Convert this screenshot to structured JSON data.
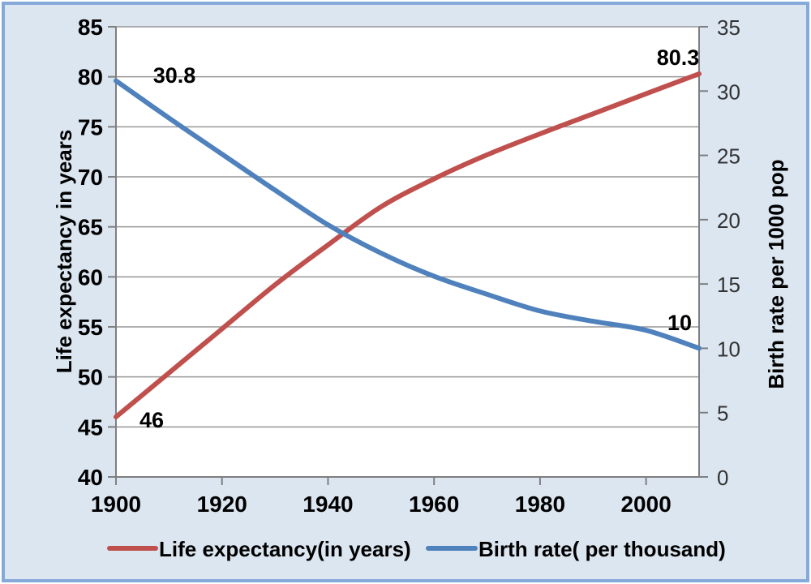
{
  "frame": {
    "background_color": "#DCE6F1",
    "border_color": "#85AAD9",
    "plot_background": "#FFFFFF"
  },
  "colors": {
    "gridline": "#969696",
    "axis_line": "#7F7F7F",
    "tick_text": "#000000",
    "right_tick_text": "#333333"
  },
  "chart_data": {
    "type": "line",
    "title": "",
    "grid": true,
    "legend_position": "bottom",
    "x": [
      1900,
      1910,
      1920,
      1930,
      1940,
      1950,
      1960,
      1970,
      1980,
      1990,
      2000,
      2010
    ],
    "series": [
      {
        "id": "life-expectancy-line",
        "name": "Life expectancy(in years)",
        "axis": "left",
        "color": "#C0504D",
        "values": [
          46,
          50.4,
          54.8,
          59.2,
          63.2,
          67,
          69.8,
          72.2,
          74.3,
          76.3,
          78.3,
          80.3
        ]
      },
      {
        "id": "birth-rate-line",
        "name": "Birth rate( per thousand)",
        "axis": "right",
        "color": "#4F81BD",
        "values": [
          30.8,
          27.9,
          25.1,
          22.3,
          19.6,
          17.4,
          15.6,
          14.2,
          12.9,
          12.1,
          11.4,
          10
        ]
      }
    ],
    "left_axis": {
      "title": "Life expectancy in years",
      "min": 40,
      "max": 85,
      "step": 5,
      "ticks": [
        40,
        45,
        50,
        55,
        60,
        65,
        70,
        75,
        80,
        85
      ]
    },
    "right_axis": {
      "title": "Birth rate per 1000 pop",
      "min": 0,
      "max": 35,
      "step": 5,
      "ticks": [
        0,
        5,
        10,
        15,
        20,
        25,
        30,
        35
      ]
    },
    "x_axis": {
      "min": 1900,
      "max": 2010,
      "label_step": 20,
      "tick_labels": [
        "1900",
        "1920",
        "1940",
        "1960",
        "1980",
        "2000"
      ]
    },
    "point_labels": [
      {
        "series": 0,
        "x": 1900,
        "text": "46"
      },
      {
        "series": 1,
        "x": 1900,
        "text": "30.8"
      },
      {
        "series": 0,
        "x": 2010,
        "text": "80.3"
      },
      {
        "series": 1,
        "x": 2010,
        "text": "10"
      }
    ],
    "legend": [
      {
        "label": "Life expectancy(in years)",
        "color": "#C0504D"
      },
      {
        "label": "Birth rate( per thousand)",
        "color": "#4F81BD"
      }
    ]
  }
}
